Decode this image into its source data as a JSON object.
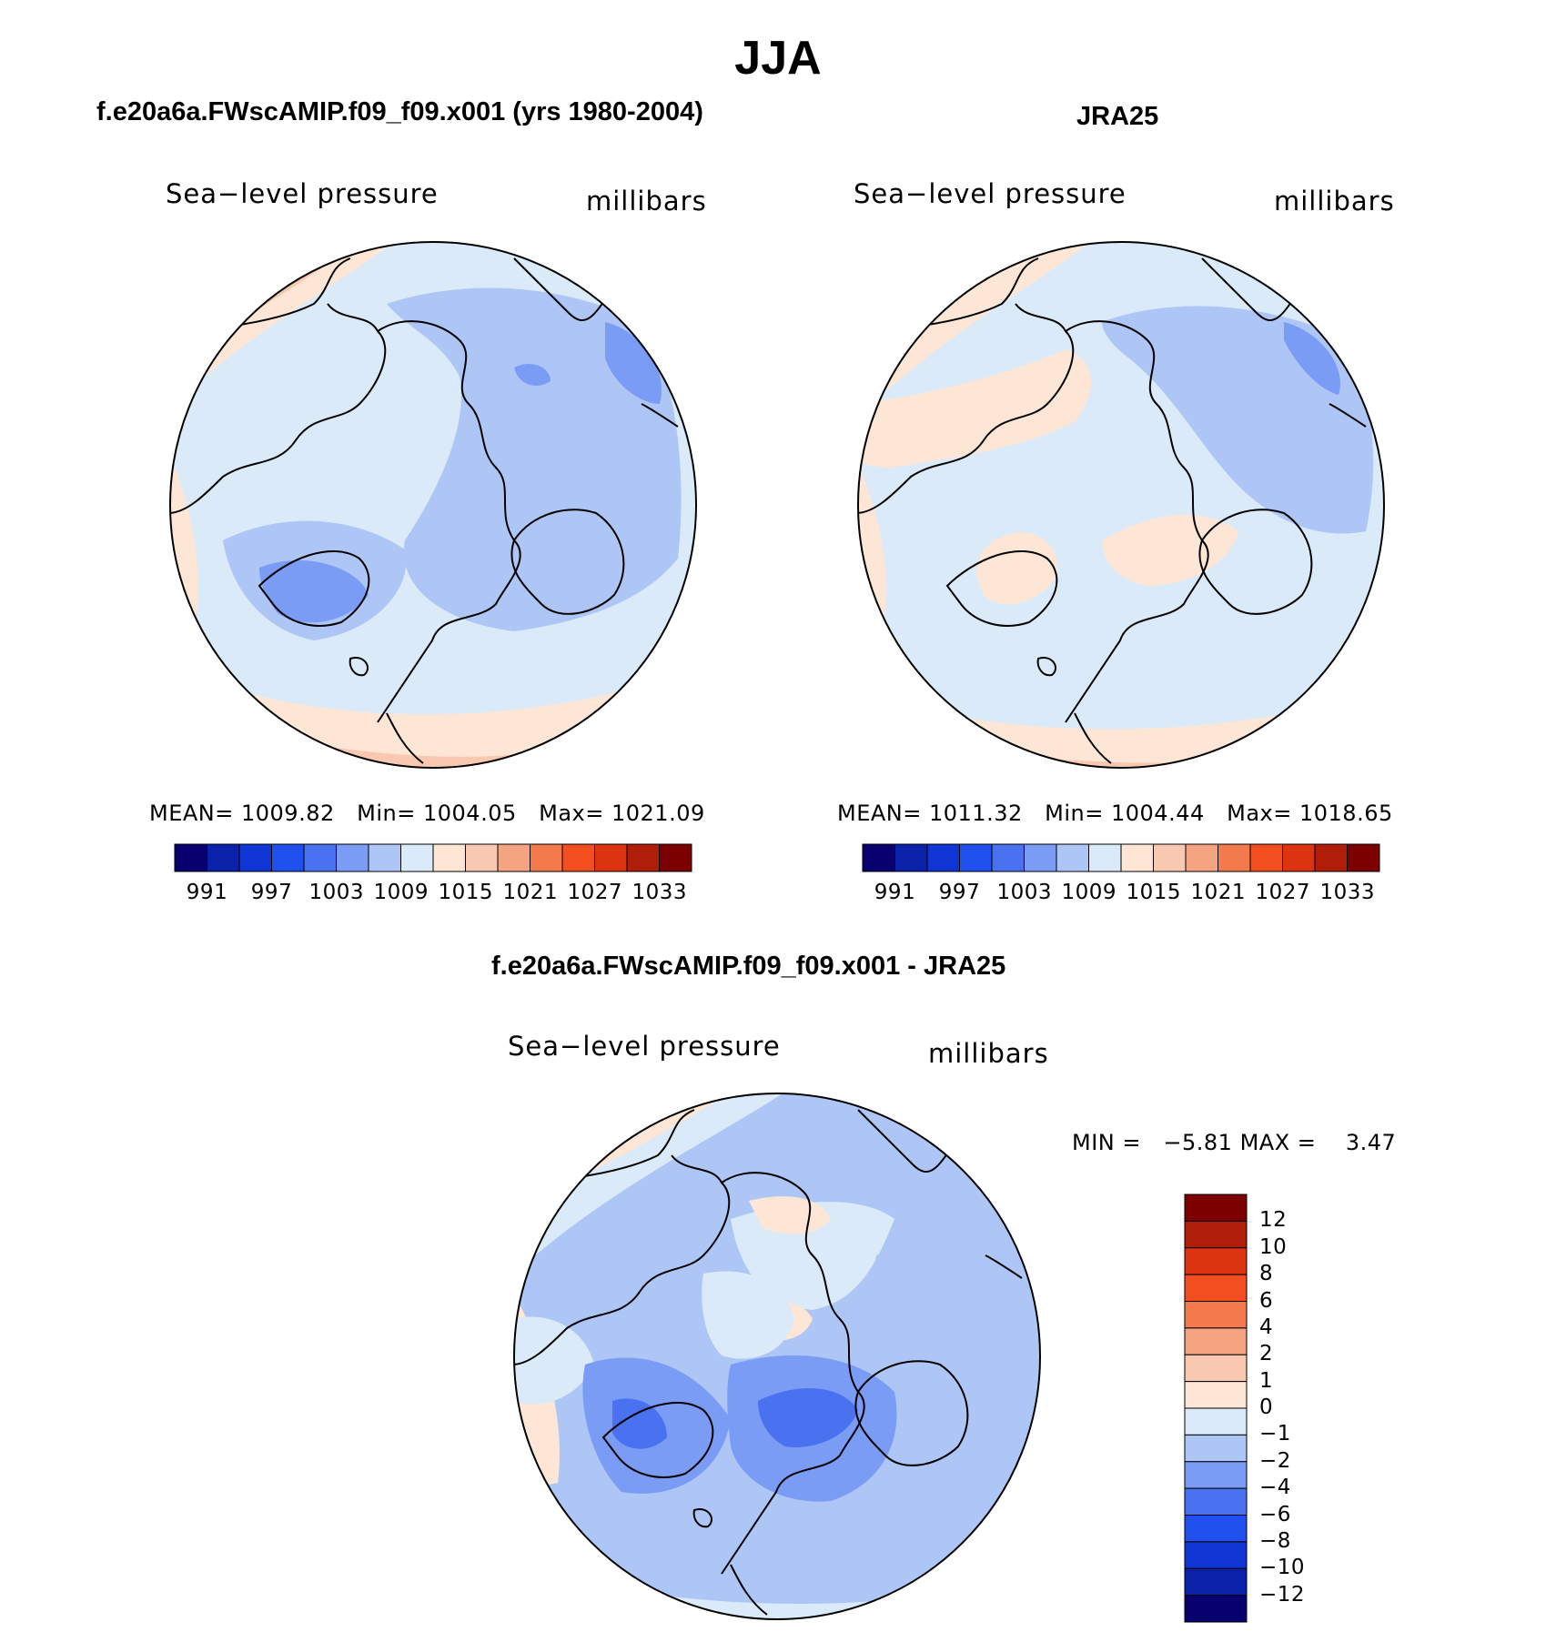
{
  "main_title": "JJA",
  "panels": [
    {
      "title": "f.e20a6a.FWscAMIP.f09_f09.x001 (yrs 1980-2004)",
      "variable": "Sea−level pressure",
      "units": "millibars",
      "stats": {
        "mean": "1009.82",
        "min": "1004.05",
        "max": "1021.09"
      }
    },
    {
      "title": "JRA25",
      "variable": "Sea−level pressure",
      "units": "millibars",
      "stats": {
        "mean": "1011.32",
        "min": "1004.44",
        "max": "1018.65"
      }
    }
  ],
  "diff_panel": {
    "title": "f.e20a6a.FWscAMIP.f09_f09.x001 - JRA25",
    "variable": "Sea−level pressure",
    "units": "millibars",
    "stats": {
      "min": "−5.81",
      "max": "3.47"
    }
  },
  "labels": {
    "mean": "MEAN=",
    "min": "Min=",
    "max": "Max=",
    "diff_min": "MIN =",
    "diff_max": "MAX ="
  },
  "abs_colorbar": {
    "colors": [
      "#08006e",
      "#0a22aa",
      "#0f36d4",
      "#2050ee",
      "#4a72f0",
      "#7a9cf4",
      "#aec6f6",
      "#daeaf8",
      "#fde6d6",
      "#f9c8b0",
      "#f4a480",
      "#f27a4c",
      "#f24e20",
      "#dc3410",
      "#b01d08",
      "#7c0000"
    ],
    "labels": [
      "991",
      "997",
      "1003",
      "1009",
      "1015",
      "1021",
      "1027",
      "1033"
    ]
  },
  "diff_colorbar": {
    "colors": [
      "#7c0000",
      "#b01d08",
      "#dc3410",
      "#f24e20",
      "#f27a4c",
      "#f4a480",
      "#f9c8b0",
      "#fde6d6",
      "#daeaf8",
      "#aec6f6",
      "#7a9cf4",
      "#4a72f0",
      "#2050ee",
      "#0f36d4",
      "#0a22aa",
      "#08006e"
    ],
    "labels": [
      "12",
      "10",
      "8",
      "6",
      "4",
      "2",
      "1",
      "0",
      "−1",
      "−2",
      "−4",
      "−6",
      "−8",
      "−10",
      "−12"
    ]
  }
}
